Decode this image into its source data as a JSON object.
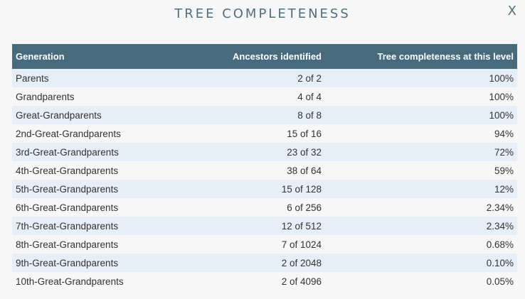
{
  "dialog": {
    "title": "TREE COMPLETENESS",
    "close_label": "X"
  },
  "table": {
    "headers": [
      "Generation",
      "Ancestors identified",
      "Tree completeness at this level"
    ],
    "rows": [
      [
        "Parents",
        "2 of 2",
        "100%"
      ],
      [
        "Grandparents",
        "4 of 4",
        "100%"
      ],
      [
        "Great-Grandparents",
        "8 of 8",
        "100%"
      ],
      [
        "2nd-Great-Grandparents",
        "15 of 16",
        "94%"
      ],
      [
        "3rd-Great-Grandparents",
        "23 of 32",
        "72%"
      ],
      [
        "4th-Great-Grandparents",
        "38 of 64",
        "59%"
      ],
      [
        "5th-Great-Grandparents",
        "15 of 128",
        "12%"
      ],
      [
        "6th-Great-Grandparents",
        "6 of 256",
        "2.34%"
      ],
      [
        "7th-Great-Grandparents",
        "12 of 512",
        "2.34%"
      ],
      [
        "8th-Great-Grandparents",
        "7 of 1024",
        "0.68%"
      ],
      [
        "9th-Great-Grandparents",
        "2 of 2048",
        "0.10%"
      ],
      [
        "10th-Great-Grandparents",
        "2 of 4096",
        "0.05%"
      ]
    ]
  },
  "colors": {
    "header_bg": "#476a7c",
    "title_color": "#4f6f7f",
    "row_alt_bg": "#e6eff7",
    "background": "#f7f7f7"
  }
}
